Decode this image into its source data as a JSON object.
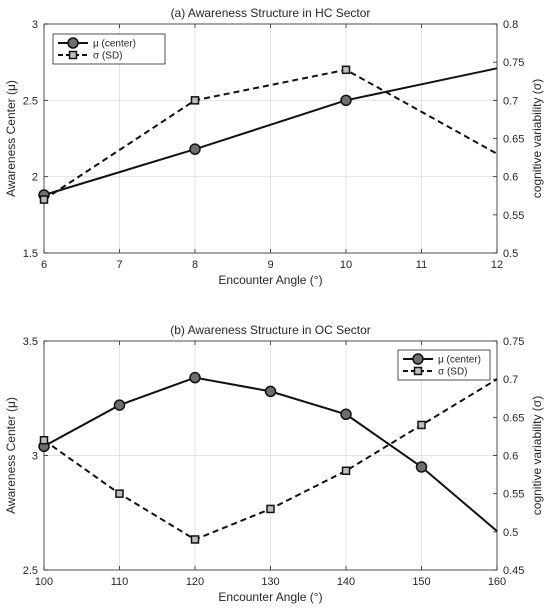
{
  "chart_data": [
    {
      "type": "line",
      "title": "(a) Awareness Structure in HC Sector",
      "xlabel": "Encounter Angle (°)",
      "ylabel_left": "Awareness Center (μ)",
      "ylabel_right": "cognitive variability (σ)",
      "xlim": [
        6,
        12
      ],
      "ylim_left": [
        1.5,
        3
      ],
      "ylim_right": [
        0.5,
        0.8
      ],
      "x_ticks": [
        "6",
        "7",
        "8",
        "9",
        "10",
        "11",
        "12"
      ],
      "y_left_ticks": [
        "1.5",
        "2",
        "2.5",
        "3"
      ],
      "y_right_ticks": [
        "0.5",
        "0.55",
        "0.6",
        "0.65",
        "0.7",
        "0.75",
        "0.8"
      ],
      "grid": true,
      "legend_position": "top-left",
      "series": [
        {
          "name": "μ (center)",
          "axis": "left",
          "style": "solid",
          "marker": "circle",
          "x": [
            6,
            8,
            10,
            12
          ],
          "y": [
            1.88,
            2.18,
            2.5,
            2.71
          ],
          "marker_x": [
            6,
            8,
            10
          ]
        },
        {
          "name": "σ (SD)",
          "axis": "right",
          "style": "dashed",
          "marker": "square",
          "x": [
            6,
            8,
            10,
            12
          ],
          "y": [
            0.57,
            0.7,
            0.74,
            0.63
          ],
          "marker_x": [
            6,
            8,
            10
          ]
        }
      ]
    },
    {
      "type": "line",
      "title": "(b) Awareness Structure in OC Sector",
      "xlabel": "Encounter Angle (°)",
      "ylabel_left": "Awareness Center (μ)",
      "ylabel_right": "cognitive variability (σ)",
      "xlim": [
        100,
        160
      ],
      "ylim_left": [
        2.5,
        3.5
      ],
      "ylim_right": [
        0.45,
        0.75
      ],
      "x_ticks": [
        "100",
        "110",
        "120",
        "130",
        "140",
        "150",
        "160"
      ],
      "y_left_ticks": [
        "2.5",
        "3",
        "3.5"
      ],
      "y_right_ticks": [
        "0.45",
        "0.5",
        "0.55",
        "0.6",
        "0.65",
        "0.7",
        "0.75"
      ],
      "grid": true,
      "legend_position": "top-right",
      "series": [
        {
          "name": "μ (center)",
          "axis": "left",
          "style": "solid",
          "marker": "circle",
          "x": [
            100,
            110,
            120,
            130,
            140,
            150,
            160
          ],
          "y": [
            3.04,
            3.22,
            3.34,
            3.28,
            3.18,
            2.95,
            2.67
          ],
          "marker_x": [
            100,
            110,
            120,
            130,
            140,
            150
          ]
        },
        {
          "name": "σ (SD)",
          "axis": "right",
          "style": "dashed",
          "marker": "square",
          "x": [
            100,
            110,
            120,
            130,
            140,
            150,
            160
          ],
          "y": [
            0.62,
            0.55,
            0.49,
            0.53,
            0.58,
            0.64,
            0.7
          ],
          "marker_x": [
            100,
            110,
            120,
            130,
            140,
            150
          ]
        }
      ]
    }
  ]
}
